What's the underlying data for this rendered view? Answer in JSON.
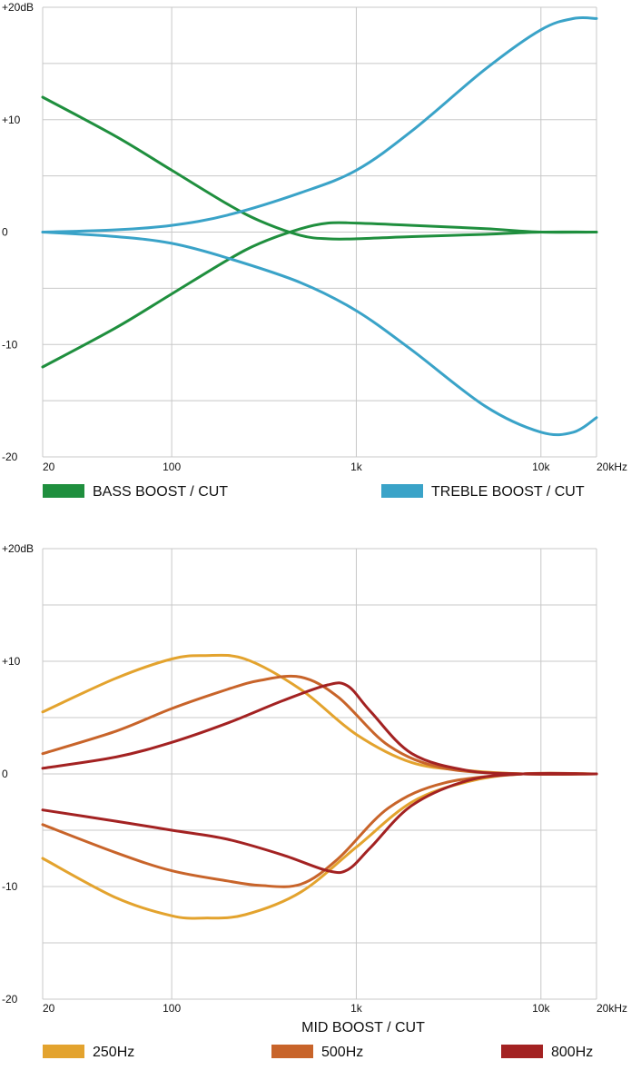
{
  "chart_data": [
    {
      "type": "line",
      "title": "",
      "xscale": "log",
      "xlim": [
        20,
        20000
      ],
      "ylim": [
        -20,
        20
      ],
      "grid": true,
      "y_ticks": [
        {
          "value": 20,
          "label": "+20dB"
        },
        {
          "value": 10,
          "label": "+10"
        },
        {
          "value": 0,
          "label": "0"
        },
        {
          "value": -10,
          "label": "-10"
        },
        {
          "value": -20,
          "label": "-20"
        }
      ],
      "x_ticks": [
        {
          "value": 20,
          "label": "20"
        },
        {
          "value": 100,
          "label": "100"
        },
        {
          "value": 1000,
          "label": "1k"
        },
        {
          "value": 10000,
          "label": "10k"
        },
        {
          "value": 20000,
          "label": "20kHz"
        }
      ],
      "legend": [
        {
          "label": "BASS BOOST / CUT",
          "color": "#1f8f3e"
        },
        {
          "label": "TREBLE BOOST / CUT",
          "color": "#3aa3c8"
        }
      ],
      "series": [
        {
          "group": "BASS BOOST / CUT",
          "color": "#1f8f3e",
          "x": [
            20,
            50,
            100,
            200,
            300,
            500,
            700,
            1000,
            2000,
            5000,
            10000,
            20000
          ],
          "y": [
            12,
            8.5,
            5.5,
            2.5,
            1,
            -0.3,
            -0.6,
            -0.6,
            -0.4,
            -0.2,
            0,
            0
          ]
        },
        {
          "group": "BASS BOOST / CUT",
          "color": "#1f8f3e",
          "x": [
            20,
            50,
            100,
            200,
            300,
            500,
            700,
            1000,
            2000,
            5000,
            10000,
            20000
          ],
          "y": [
            -12,
            -8.5,
            -5.5,
            -2.5,
            -1,
            0.3,
            0.8,
            0.8,
            0.6,
            0.3,
            0,
            0
          ]
        },
        {
          "group": "TREBLE BOOST / CUT",
          "color": "#3aa3c8",
          "x": [
            20,
            50,
            100,
            200,
            500,
            1000,
            2000,
            5000,
            10000,
            15000,
            20000
          ],
          "y": [
            0,
            0.2,
            0.6,
            1.5,
            3.5,
            5.5,
            9,
            14.5,
            18,
            19,
            19
          ]
        },
        {
          "group": "TREBLE BOOST / CUT",
          "color": "#3aa3c8",
          "x": [
            20,
            50,
            100,
            200,
            500,
            1000,
            2000,
            5000,
            10000,
            15000,
            20000
          ],
          "y": [
            0,
            -0.4,
            -1,
            -2.3,
            -4.5,
            -7,
            -10.5,
            -15.5,
            -17.8,
            -17.8,
            -16.5
          ]
        }
      ]
    },
    {
      "type": "line",
      "title": "",
      "xlabel": "MID BOOST / CUT",
      "xscale": "log",
      "xlim": [
        20,
        20000
      ],
      "ylim": [
        -20,
        20
      ],
      "grid": true,
      "y_ticks": [
        {
          "value": 20,
          "label": "+20dB"
        },
        {
          "value": 10,
          "label": "+10"
        },
        {
          "value": 0,
          "label": "0"
        },
        {
          "value": -10,
          "label": "-10"
        },
        {
          "value": -20,
          "label": "-20"
        }
      ],
      "x_ticks": [
        {
          "value": 20,
          "label": "20"
        },
        {
          "value": 100,
          "label": "100"
        },
        {
          "value": 1000,
          "label": "1k"
        },
        {
          "value": 10000,
          "label": "10k"
        },
        {
          "value": 20000,
          "label": "20kHz"
        }
      ],
      "legend": [
        {
          "label": "250Hz",
          "color": "#e3a32e"
        },
        {
          "label": "500Hz",
          "color": "#c8642a"
        },
        {
          "label": "800Hz",
          "color": "#a32222"
        }
      ],
      "series": [
        {
          "group": "250Hz",
          "color": "#e3a32e",
          "x": [
            20,
            50,
            100,
            150,
            250,
            500,
            1000,
            2000,
            4000,
            8000,
            20000
          ],
          "y": [
            5.5,
            8.5,
            10.2,
            10.5,
            10.2,
            7.5,
            3.5,
            1,
            0.3,
            0,
            0
          ]
        },
        {
          "group": "250Hz",
          "color": "#e3a32e",
          "x": [
            20,
            50,
            100,
            150,
            250,
            500,
            1000,
            2000,
            4000,
            8000,
            20000
          ],
          "y": [
            -7.5,
            -11,
            -12.6,
            -12.8,
            -12.5,
            -10.5,
            -6.5,
            -2.5,
            -0.7,
            0,
            0
          ]
        },
        {
          "group": "500Hz",
          "color": "#c8642a",
          "x": [
            20,
            50,
            100,
            200,
            300,
            500,
            800,
            1500,
            3000,
            8000,
            20000
          ],
          "y": [
            1.8,
            3.8,
            5.8,
            7.5,
            8.3,
            8.6,
            6.8,
            2.5,
            0.5,
            0,
            0
          ]
        },
        {
          "group": "500Hz",
          "color": "#c8642a",
          "x": [
            20,
            50,
            100,
            200,
            300,
            500,
            800,
            1500,
            3000,
            8000,
            20000
          ],
          "y": [
            -4.5,
            -7,
            -8.6,
            -9.5,
            -9.9,
            -9.8,
            -7.5,
            -3,
            -0.8,
            0,
            0
          ]
        },
        {
          "group": "800Hz",
          "color": "#a32222",
          "x": [
            20,
            50,
            100,
            200,
            400,
            700,
            900,
            1200,
            2000,
            4000,
            8000,
            20000
          ],
          "y": [
            0.5,
            1.5,
            2.8,
            4.5,
            6.5,
            7.9,
            7.8,
            5.5,
            1.8,
            0.3,
            0,
            0
          ]
        },
        {
          "group": "800Hz",
          "color": "#a32222",
          "x": [
            20,
            50,
            100,
            200,
            400,
            700,
            900,
            1200,
            2000,
            4000,
            8000,
            20000
          ],
          "y": [
            -3.2,
            -4.2,
            -5,
            -5.8,
            -7.2,
            -8.6,
            -8.5,
            -6.5,
            -2.8,
            -0.6,
            0,
            0
          ]
        }
      ]
    }
  ]
}
